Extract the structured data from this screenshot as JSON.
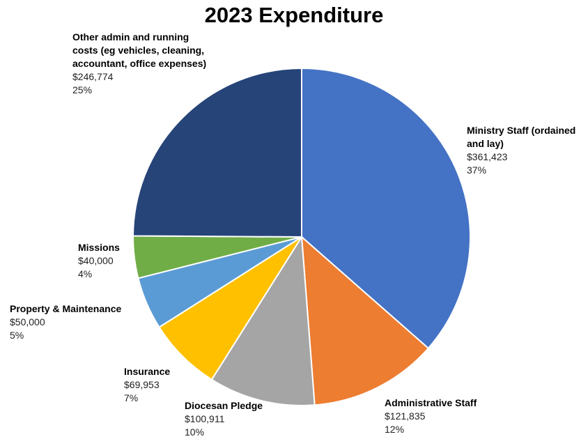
{
  "chart_data": {
    "type": "pie",
    "title": "2023 Expenditure",
    "slices": [
      {
        "name": "Ministry Staff (ordained\nand lay)",
        "value": 361423,
        "value_label": "$361,423",
        "pct_label": "37%",
        "color": "#4472C4"
      },
      {
        "name": "Administrative Staff",
        "value": 121835,
        "value_label": "$121,835",
        "pct_label": "12%",
        "color": "#ED7D31"
      },
      {
        "name": "Diocesan Pledge",
        "value": 100911,
        "value_label": "$100,911",
        "pct_label": "10%",
        "color": "#A5A5A5"
      },
      {
        "name": "Insurance",
        "value": 69953,
        "value_label": "$69,953",
        "pct_label": "7%",
        "color": "#FFC000"
      },
      {
        "name": "Property & Maintenance",
        "value": 50000,
        "value_label": "$50,000",
        "pct_label": "5%",
        "color": "#5B9BD5"
      },
      {
        "name": "Missions",
        "value": 40000,
        "value_label": "$40,000",
        "pct_label": "4%",
        "color": "#70AD47"
      },
      {
        "name": "Other admin and running\ncosts (eg vehicles, cleaning,\naccountant, office expenses)",
        "value": 246774,
        "value_label": "$246,774",
        "pct_label": "25%",
        "color": "#264478"
      }
    ]
  }
}
